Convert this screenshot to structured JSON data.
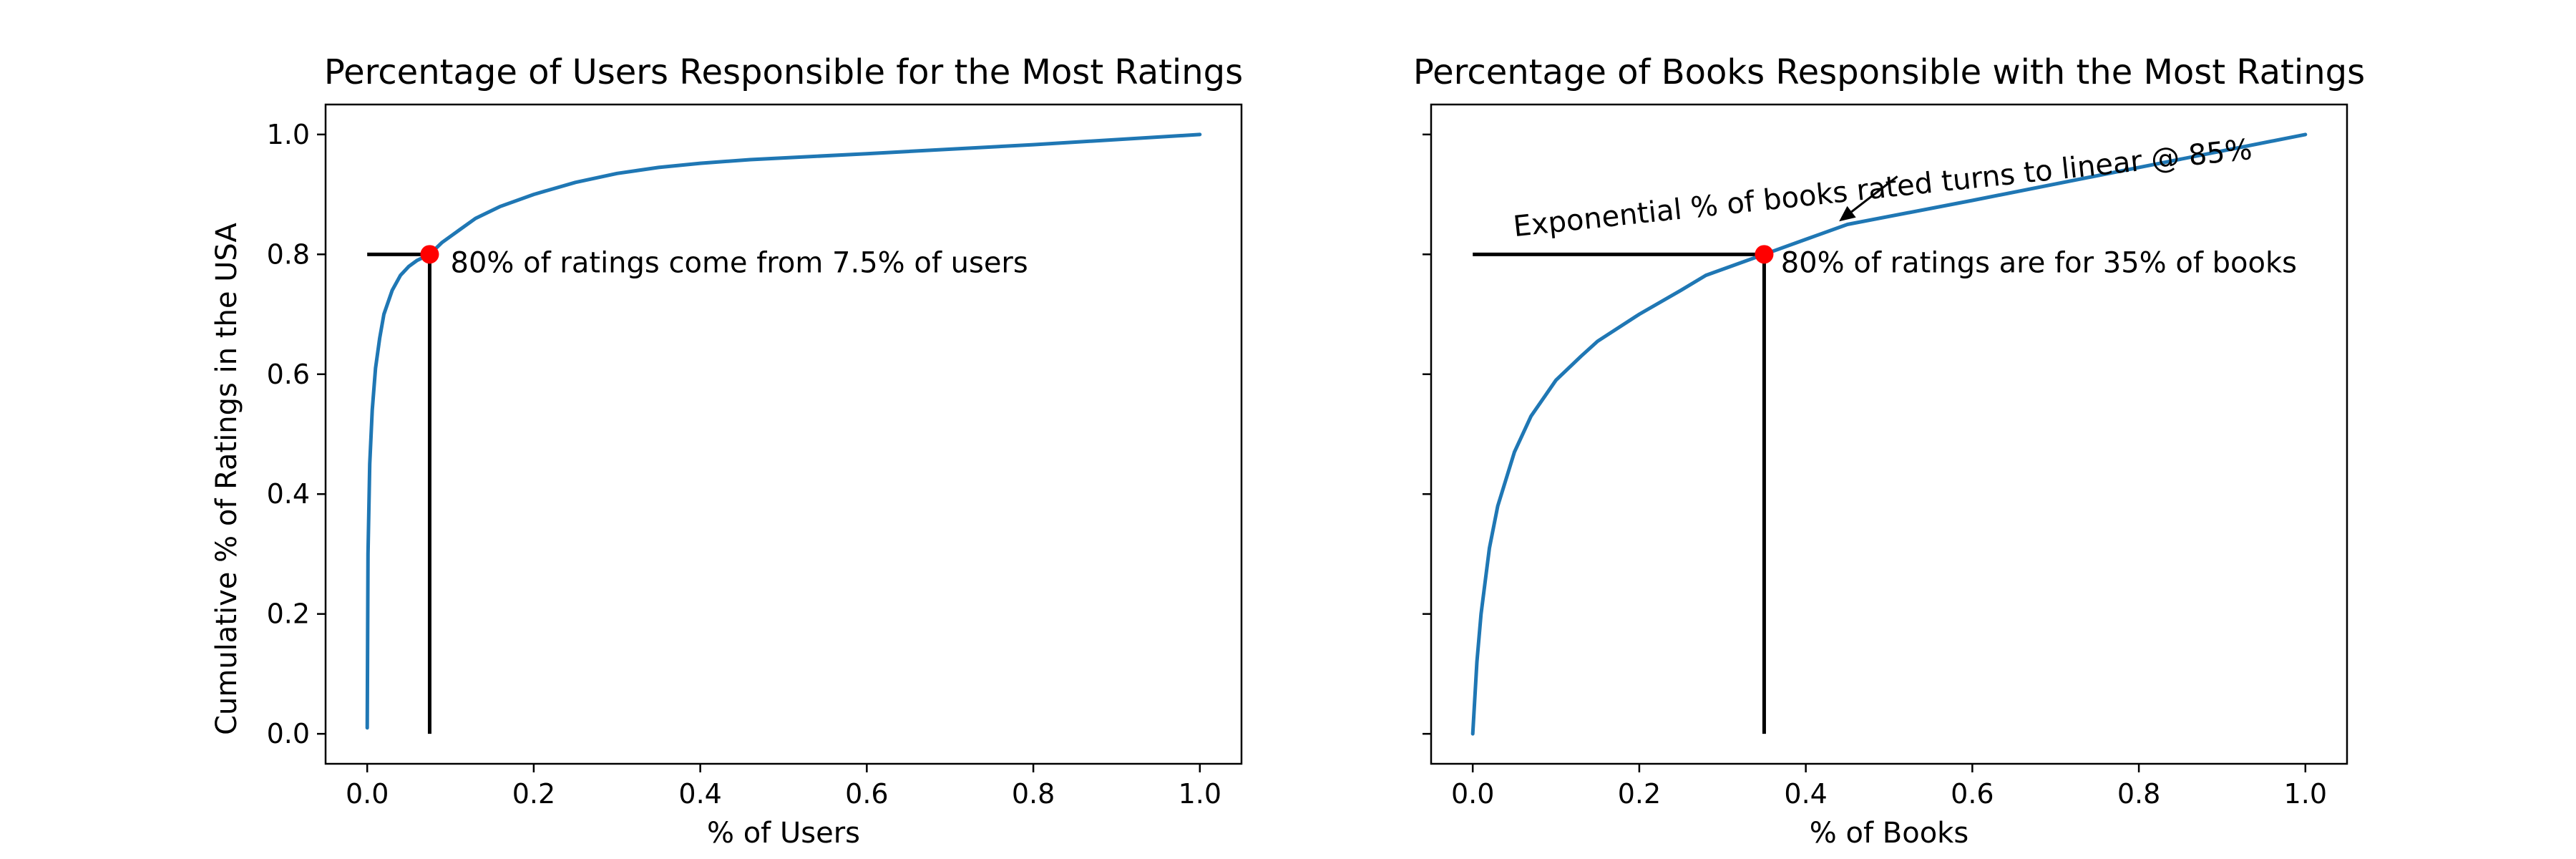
{
  "chart_data": [
    {
      "type": "line",
      "title": "Percentage of Users Responsible for the Most Ratings",
      "xlabel": "% of Users",
      "ylabel": "Cumulative % of Ratings in the USA",
      "xlim": [
        -0.05,
        1.05
      ],
      "ylim": [
        -0.05,
        1.05
      ],
      "xticks": [
        "0.0",
        "0.2",
        "0.4",
        "0.6",
        "0.8",
        "1.0"
      ],
      "yticks": [
        "0.0",
        "0.2",
        "0.4",
        "0.6",
        "0.8",
        "1.0"
      ],
      "grid": false,
      "series": [
        {
          "x": [
            0.0,
            0.001,
            0.003,
            0.006,
            0.01,
            0.015,
            0.02,
            0.03,
            0.04,
            0.05,
            0.06,
            0.075,
            0.09,
            0.11,
            0.13,
            0.16,
            0.2,
            0.25,
            0.3,
            0.35,
            0.4,
            0.46,
            0.6,
            0.8,
            1.0
          ],
          "y": [
            0.01,
            0.3,
            0.45,
            0.54,
            0.61,
            0.66,
            0.7,
            0.74,
            0.765,
            0.78,
            0.79,
            0.8,
            0.82,
            0.84,
            0.86,
            0.88,
            0.9,
            0.92,
            0.935,
            0.945,
            0.952,
            0.958,
            0.968,
            0.983,
            1.0
          ]
        }
      ],
      "highlight_point": {
        "x": 0.075,
        "y": 0.8
      },
      "annotations": [
        {
          "text": "80% of ratings come from 7.5% of users",
          "x": 0.1,
          "y": 0.77
        }
      ]
    },
    {
      "type": "line",
      "title": "Percentage of Books Responsible with the Most Ratings",
      "xlabel": "% of Books",
      "ylabel": "",
      "xlim": [
        -0.05,
        1.05
      ],
      "ylim": [
        -0.05,
        1.05
      ],
      "xticks": [
        "0.0",
        "0.2",
        "0.4",
        "0.6",
        "0.8",
        "1.0"
      ],
      "yticks": [],
      "grid": false,
      "series": [
        {
          "x": [
            0.0,
            0.005,
            0.01,
            0.02,
            0.03,
            0.05,
            0.07,
            0.1,
            0.13,
            0.15,
            0.2,
            0.25,
            0.28,
            0.32,
            0.35,
            0.4,
            0.45,
            0.6,
            0.8,
            1.0
          ],
          "y": [
            0.0,
            0.12,
            0.2,
            0.31,
            0.38,
            0.47,
            0.53,
            0.59,
            0.63,
            0.655,
            0.7,
            0.74,
            0.765,
            0.785,
            0.8,
            0.825,
            0.85,
            0.89,
            0.945,
            1.0
          ]
        }
      ],
      "highlight_point": {
        "x": 0.35,
        "y": 0.8
      },
      "annotations": [
        {
          "text": "80% of ratings are for 35% of books",
          "x": 0.37,
          "y": 0.77
        },
        {
          "text": "Exponential % of books rated turns to linear @ 85%",
          "x": 0.05,
          "y": 0.83,
          "angle": -6,
          "arrow_to": {
            "x": 0.44,
            "y": 0.855
          },
          "arrow_from": {
            "x": 0.51,
            "y": 0.93
          }
        }
      ]
    }
  ]
}
